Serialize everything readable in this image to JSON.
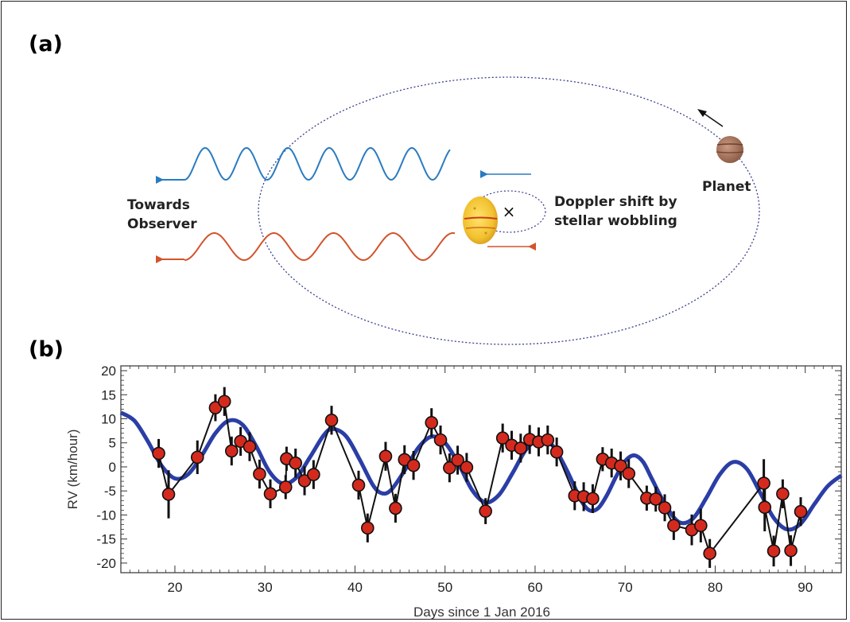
{
  "panel_a": {
    "label": "(a)",
    "observer_label_line1": "Towards",
    "observer_label_line2": "Observer",
    "doppler_label_line1": "Doppler shift by",
    "doppler_label_line2": "stellar wobbling",
    "planet_label": "Planet",
    "barycenter_symbol": "×",
    "colors": {
      "blue_wave": "#2a7bc0",
      "red_wave": "#d2542c",
      "orbit": "#3a3f8f",
      "star": "#f2c230",
      "planet": "#a8745a"
    }
  },
  "panel_b": {
    "label": "(b)"
  },
  "chart_data": {
    "type": "scatter",
    "xlabel": "Days since 1 Jan 2016",
    "ylabel": "RV (km/hour)",
    "xlim": [
      14,
      94
    ],
    "ylim": [
      -22,
      21
    ],
    "x_ticks": [
      20,
      30,
      40,
      50,
      60,
      70,
      80,
      90
    ],
    "y_ticks": [
      20,
      15,
      10,
      5,
      0,
      -5,
      -10,
      -15,
      -20
    ],
    "grid": false,
    "colors": {
      "points": "#d42a1e",
      "data_line": "#111111",
      "model_curve": "#2b3ea6"
    },
    "points": [
      {
        "x": 18.2,
        "y": 2.8,
        "err": 3.0
      },
      {
        "x": 19.3,
        "y": -5.7,
        "err": 5.0
      },
      {
        "x": 22.5,
        "y": 2.0,
        "err": 3.5
      },
      {
        "x": 24.5,
        "y": 12.3,
        "err": 2.8
      },
      {
        "x": 25.5,
        "y": 13.6,
        "err": 3.0
      },
      {
        "x": 26.3,
        "y": 3.3,
        "err": 3.0
      },
      {
        "x": 27.3,
        "y": 5.3,
        "err": 3.0
      },
      {
        "x": 28.3,
        "y": 4.2,
        "err": 3.0
      },
      {
        "x": 29.4,
        "y": -1.5,
        "err": 3.0
      },
      {
        "x": 30.6,
        "y": -5.6,
        "err": 3.0
      },
      {
        "x": 32.3,
        "y": -4.2,
        "err": 2.5
      },
      {
        "x": 32.4,
        "y": 1.7,
        "err": 2.5
      },
      {
        "x": 33.4,
        "y": 0.8,
        "err": 3.0
      },
      {
        "x": 34.4,
        "y": -2.9,
        "err": 3.0
      },
      {
        "x": 35.4,
        "y": -1.6,
        "err": 3.0
      },
      {
        "x": 37.4,
        "y": 9.7,
        "err": 3.0
      },
      {
        "x": 40.4,
        "y": -3.8,
        "err": 3.0
      },
      {
        "x": 41.4,
        "y": -12.7,
        "err": 3.0
      },
      {
        "x": 43.4,
        "y": 2.2,
        "err": 3.0
      },
      {
        "x": 44.5,
        "y": -8.6,
        "err": 3.0
      },
      {
        "x": 45.5,
        "y": 1.5,
        "err": 3.0
      },
      {
        "x": 46.5,
        "y": 0.3,
        "err": 3.0
      },
      {
        "x": 48.5,
        "y": 9.2,
        "err": 3.0
      },
      {
        "x": 49.5,
        "y": 5.6,
        "err": 3.0
      },
      {
        "x": 50.5,
        "y": -0.2,
        "err": 3.0
      },
      {
        "x": 51.4,
        "y": 1.4,
        "err": 3.0
      },
      {
        "x": 52.4,
        "y": -0.1,
        "err": 3.0
      },
      {
        "x": 54.5,
        "y": -9.2,
        "err": 2.7
      },
      {
        "x": 56.4,
        "y": 6.0,
        "err": 3.0
      },
      {
        "x": 57.4,
        "y": 4.5,
        "err": 3.0
      },
      {
        "x": 58.4,
        "y": 3.9,
        "err": 3.0
      },
      {
        "x": 59.4,
        "y": 5.7,
        "err": 3.0
      },
      {
        "x": 60.4,
        "y": 5.2,
        "err": 3.0
      },
      {
        "x": 61.4,
        "y": 5.6,
        "err": 3.0
      },
      {
        "x": 62.4,
        "y": 3.1,
        "err": 3.0
      },
      {
        "x": 64.4,
        "y": -6.0,
        "err": 3.0
      },
      {
        "x": 65.4,
        "y": -6.2,
        "err": 3.0
      },
      {
        "x": 66.4,
        "y": -6.6,
        "err": 3.0
      },
      {
        "x": 67.5,
        "y": 1.6,
        "err": 2.5
      },
      {
        "x": 68.5,
        "y": 0.8,
        "err": 3.0
      },
      {
        "x": 69.5,
        "y": 0.2,
        "err": 3.0
      },
      {
        "x": 70.4,
        "y": -1.4,
        "err": 3.0
      },
      {
        "x": 72.4,
        "y": -6.5,
        "err": 2.6
      },
      {
        "x": 73.4,
        "y": -6.7,
        "err": 2.6
      },
      {
        "x": 74.4,
        "y": -8.5,
        "err": 2.8
      },
      {
        "x": 75.4,
        "y": -12.2,
        "err": 3.0
      },
      {
        "x": 77.4,
        "y": -13.1,
        "err": 3.2
      },
      {
        "x": 78.4,
        "y": -12.2,
        "err": 3.5
      },
      {
        "x": 79.4,
        "y": -18.0,
        "err": 3.0
      },
      {
        "x": 85.4,
        "y": -3.4,
        "err": 5.0
      },
      {
        "x": 85.5,
        "y": -8.4,
        "err": 5.0
      },
      {
        "x": 86.5,
        "y": -17.5,
        "err": 3.2
      },
      {
        "x": 87.5,
        "y": -5.6,
        "err": 3.0
      },
      {
        "x": 88.4,
        "y": -17.4,
        "err": 3.2
      },
      {
        "x": 89.5,
        "y": -9.3,
        "err": 3.0
      }
    ],
    "model_curve": [
      [
        14.0,
        11.3
      ],
      [
        15.5,
        9.6
      ],
      [
        17.0,
        5.3
      ],
      [
        18.5,
        0.3
      ],
      [
        20.0,
        -2.4
      ],
      [
        21.5,
        -1.5
      ],
      [
        23.0,
        2.4
      ],
      [
        24.5,
        7.0
      ],
      [
        26.0,
        9.6
      ],
      [
        27.5,
        8.8
      ],
      [
        29.0,
        4.4
      ],
      [
        30.5,
        -1.0
      ],
      [
        32.0,
        -3.5
      ],
      [
        33.5,
        -2.2
      ],
      [
        35.0,
        2.0
      ],
      [
        36.5,
        6.5
      ],
      [
        37.5,
        7.9
      ],
      [
        39.0,
        6.4
      ],
      [
        40.5,
        1.6
      ],
      [
        42.0,
        -3.8
      ],
      [
        43.0,
        -5.5
      ],
      [
        44.0,
        -4.8
      ],
      [
        45.5,
        -0.8
      ],
      [
        47.0,
        3.9
      ],
      [
        48.5,
        6.3
      ],
      [
        50.0,
        5.0
      ],
      [
        51.5,
        0.6
      ],
      [
        53.0,
        -4.8
      ],
      [
        54.5,
        -7.4
      ],
      [
        56.0,
        -5.8
      ],
      [
        57.5,
        -1.3
      ],
      [
        59.0,
        3.6
      ],
      [
        60.5,
        5.8
      ],
      [
        62.0,
        4.3
      ],
      [
        63.5,
        -0.6
      ],
      [
        65.0,
        -6.6
      ],
      [
        66.0,
        -9.0
      ],
      [
        67.0,
        -8.6
      ],
      [
        68.0,
        -5.8
      ],
      [
        69.0,
        -2.0
      ],
      [
        70.0,
        1.2
      ],
      [
        71.0,
        2.4
      ],
      [
        72.0,
        1.0
      ],
      [
        73.0,
        -2.6
      ],
      [
        74.5,
        -8.0
      ],
      [
        76.0,
        -11.5
      ],
      [
        77.5,
        -10.8
      ],
      [
        79.0,
        -6.5
      ],
      [
        80.5,
        -1.6
      ],
      [
        82.0,
        1.0
      ],
      [
        83.5,
        -0.4
      ],
      [
        85.0,
        -5.4
      ],
      [
        86.5,
        -10.6
      ],
      [
        88.0,
        -13.0
      ],
      [
        89.5,
        -11.8
      ],
      [
        91.0,
        -7.8
      ],
      [
        92.5,
        -4.0
      ],
      [
        94.0,
        -1.8
      ]
    ]
  }
}
